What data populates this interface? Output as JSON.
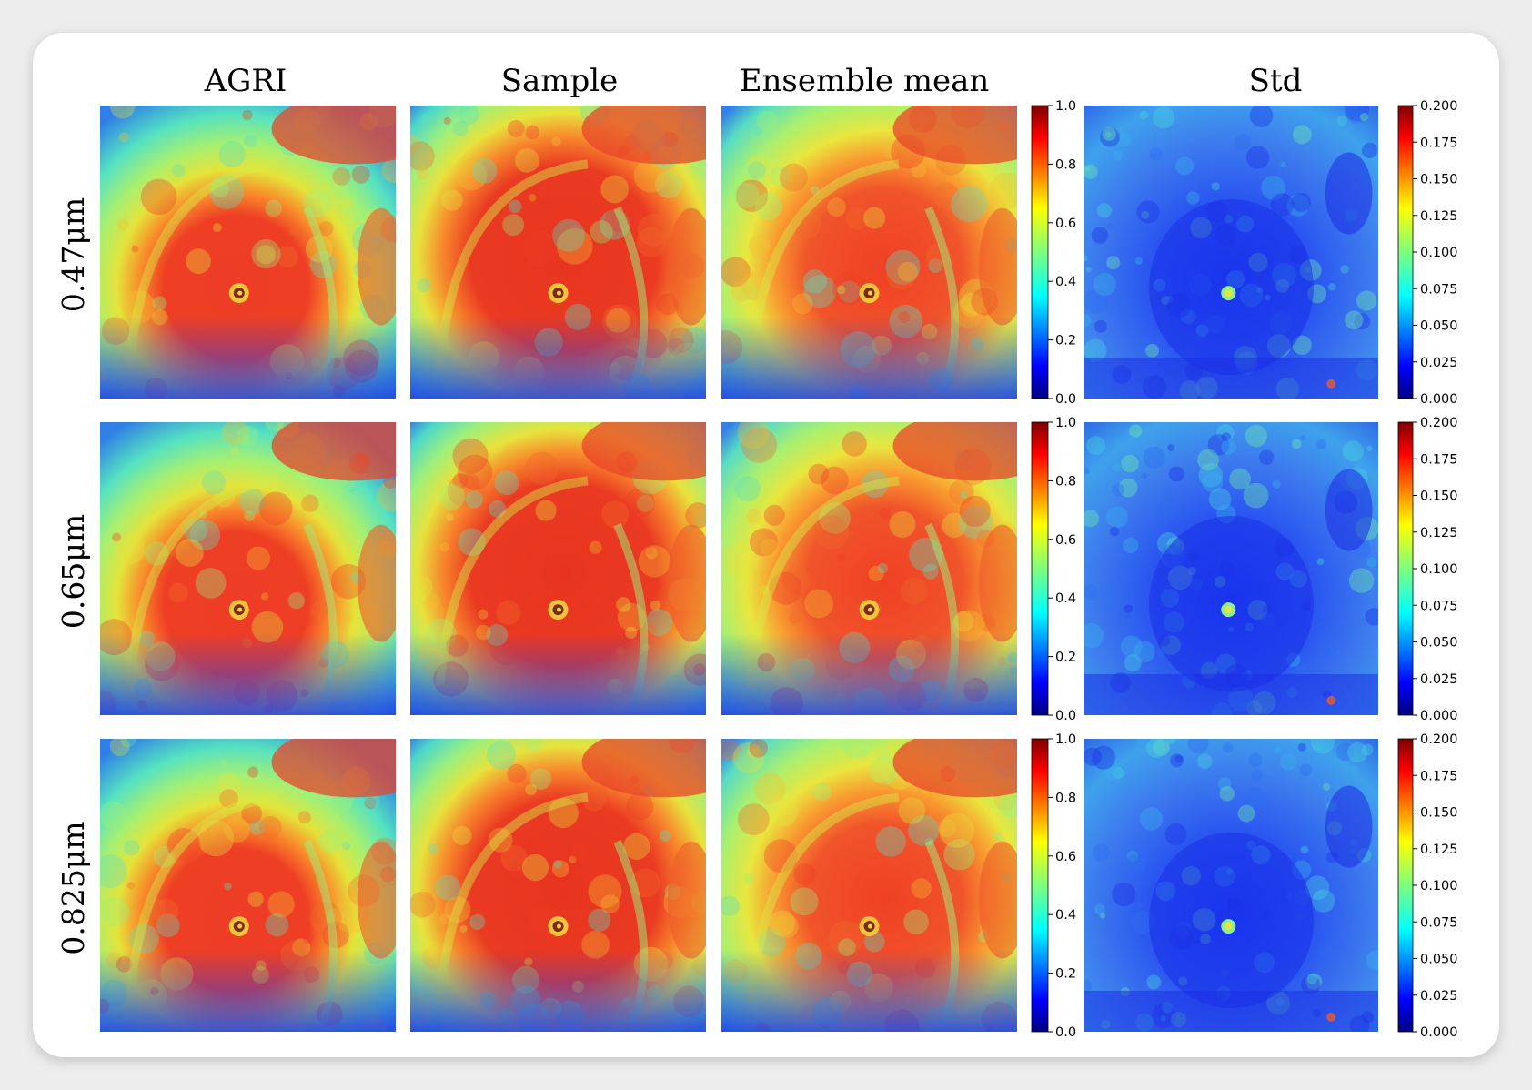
{
  "columns": [
    "AGRI",
    "Sample",
    "Ensemble mean",
    "Std"
  ],
  "rows": [
    "0.47μm",
    "0.65μm",
    "0.825μm"
  ],
  "colorbar_main": {
    "colormap": "jet",
    "range": [
      0.0,
      1.0
    ],
    "ticks": [
      "0.0",
      "0.2",
      "0.4",
      "0.6",
      "0.8",
      "1.0"
    ]
  },
  "colorbar_std": {
    "colormap": "jet",
    "range": [
      0.0,
      0.2
    ],
    "ticks": [
      "0.000",
      "0.025",
      "0.050",
      "0.075",
      "0.100",
      "0.125",
      "0.150",
      "0.175",
      "0.200"
    ]
  },
  "colors": {
    "jet_stops": [
      "#00007f",
      "#0000ff",
      "#007fff",
      "#00ffff",
      "#7fff7f",
      "#ffff00",
      "#ff7f00",
      "#ff0000",
      "#7f0000"
    ],
    "card_background": "#ffffff",
    "page_background": "#ededed"
  }
}
